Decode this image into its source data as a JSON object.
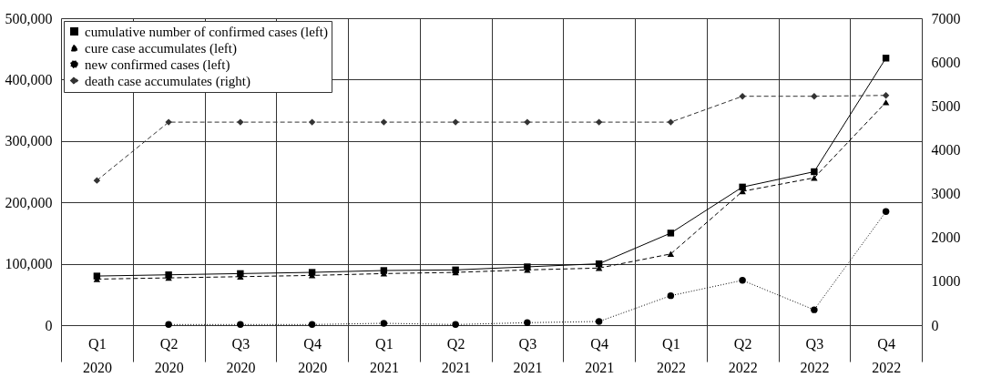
{
  "chart_data": {
    "type": "line",
    "categories": [
      "Q1 2020",
      "Q2 2020",
      "Q3 2020",
      "Q4 2020",
      "Q1 2021",
      "Q2 2021",
      "Q3 2021",
      "Q4 2021",
      "Q1 2022",
      "Q2 2022",
      "Q3 2022",
      "Q4 2022"
    ],
    "series": [
      {
        "name": "cumulative number of confirmed cases (left)",
        "color": "#000000",
        "marker": "square",
        "line_style": "solid",
        "values": [
          80000,
          82000,
          84000,
          86000,
          89000,
          90000,
          95000,
          100000,
          150000,
          225000,
          250000,
          435000
        ]
      },
      {
        "name": "cure case accumulates (left)",
        "color": "#000000",
        "marker": "triangle",
        "line_style": "dashed",
        "values": [
          75000,
          77000,
          79000,
          81000,
          84000,
          86000,
          90000,
          93000,
          116000,
          218000,
          240000,
          363000
        ]
      },
      {
        "name": "new confirmed cases (left)",
        "color": "#000000",
        "marker": "circle",
        "line_style": "dotted",
        "values": [
          null,
          1000,
          1000,
          1000,
          3000,
          1000,
          4000,
          6000,
          48000,
          73000,
          25000,
          185000
        ]
      },
      {
        "name": "death case accumulates (right)",
        "color": "#333333",
        "marker": "diamond",
        "line_style": "dashed",
        "axis": "y2",
        "values": [
          3300,
          4630,
          4630,
          4630,
          4630,
          4630,
          4630,
          4630,
          4630,
          5220,
          5220,
          5240
        ]
      }
    ],
    "ylim": [
      0,
      500000
    ],
    "yticks": [
      0,
      {
        "value": 100000,
        "label": "100,000"
      },
      {
        "value": 200000,
        "label": "200,000"
      },
      {
        "value": 300000,
        "label": "300,000"
      },
      {
        "value": 400000,
        "label": "400,000"
      },
      {
        "value": 500000,
        "label": "500,000"
      }
    ],
    "y2lim": [
      0,
      7000
    ],
    "y2ticks": [
      0,
      1000,
      2000,
      3000,
      4000,
      5000,
      6000,
      7000
    ],
    "grid": true,
    "legend": "top left"
  }
}
